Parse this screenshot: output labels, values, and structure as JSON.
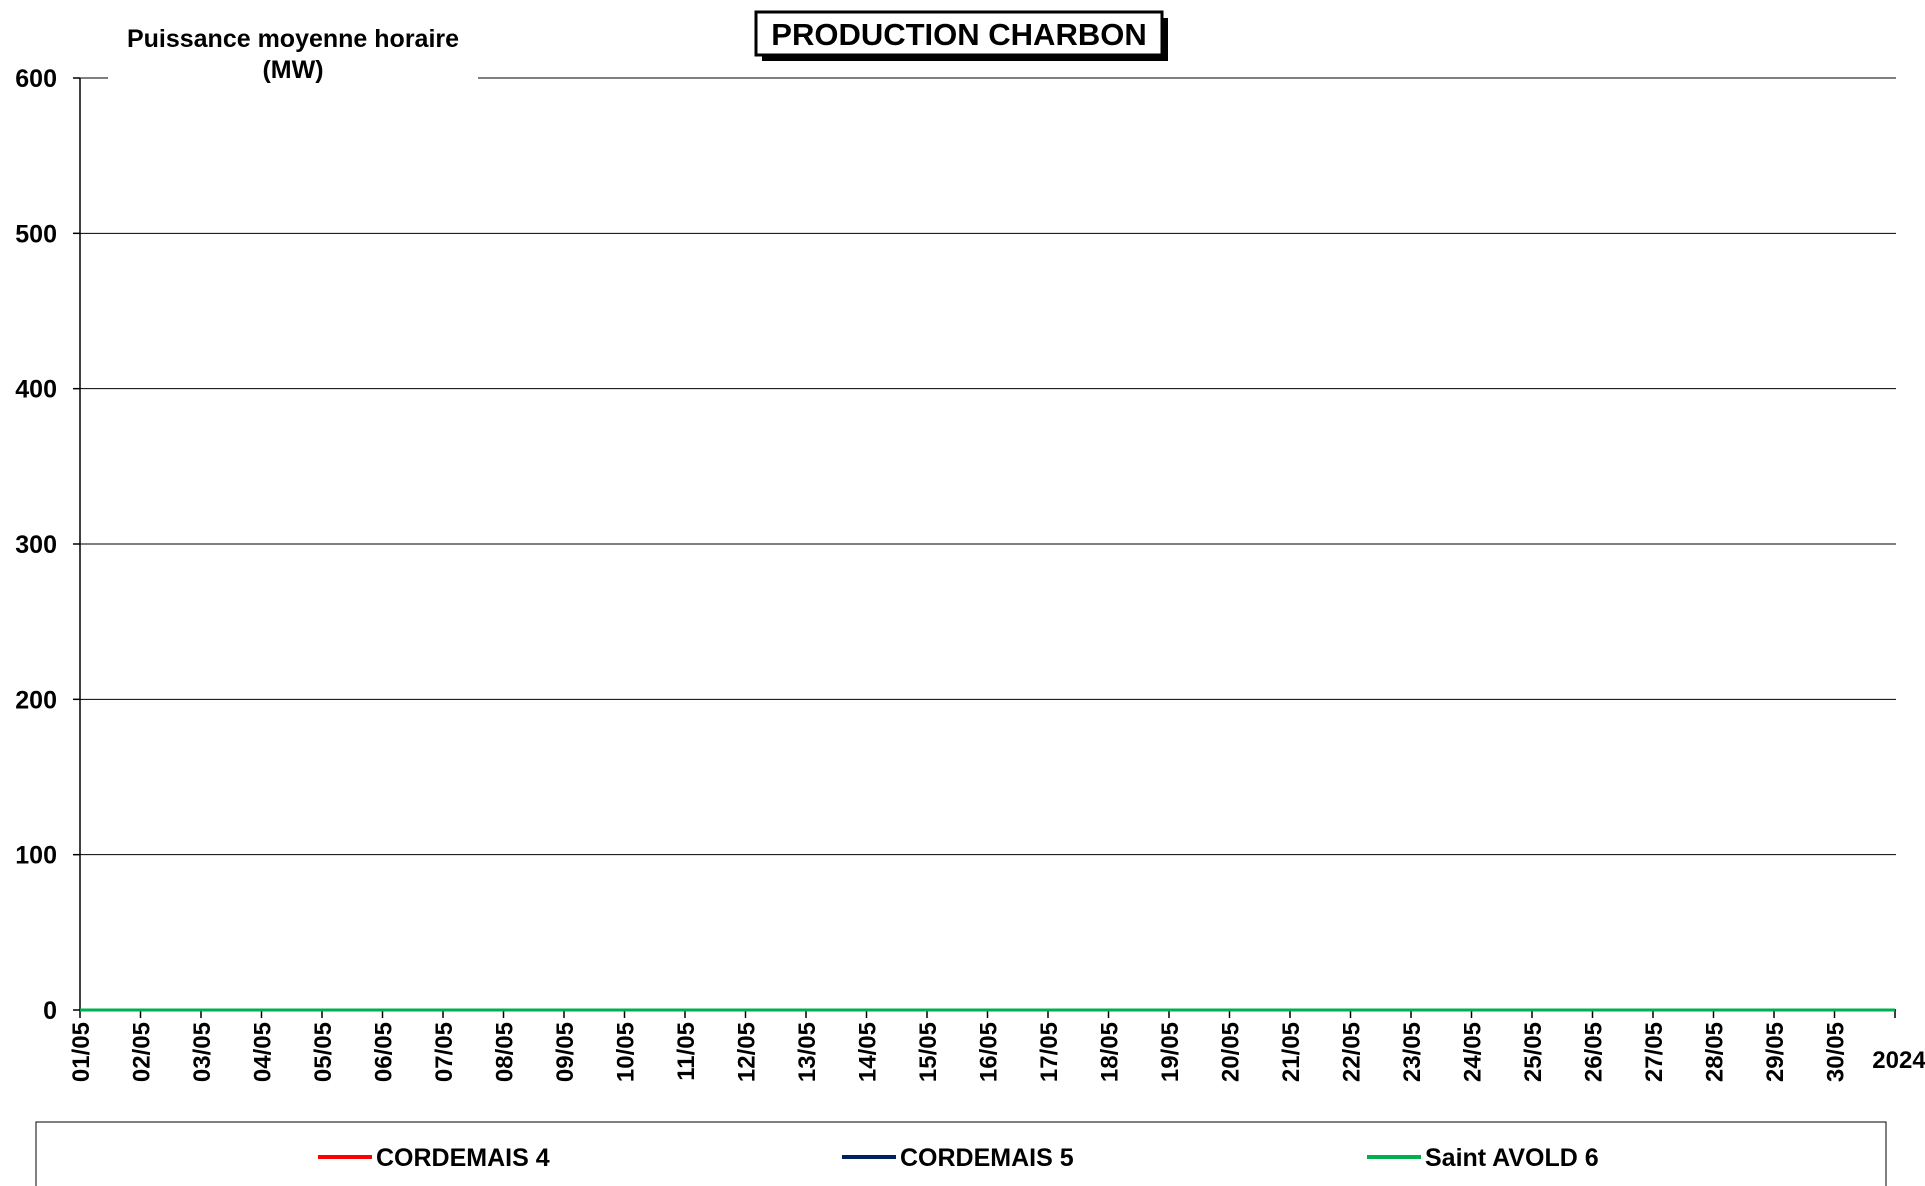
{
  "chart_data": {
    "type": "line",
    "title": "PRODUCTION CHARBON",
    "ylabel": "Puissance moyenne horaire (MW)",
    "ylabel_lines": [
      "Puissance moyenne horaire",
      "(MW)"
    ],
    "xlabel": "",
    "ylim": [
      0,
      600
    ],
    "yticks": [
      0,
      100,
      200,
      300,
      400,
      500,
      600
    ],
    "grid": true,
    "legend": "bottom",
    "categories": [
      "01/05",
      "02/05",
      "03/05",
      "04/05",
      "05/05",
      "06/05",
      "07/05",
      "08/05",
      "09/05",
      "10/05",
      "11/05",
      "12/05",
      "13/05",
      "14/05",
      "15/05",
      "16/05",
      "17/05",
      "18/05",
      "19/05",
      "20/05",
      "21/05",
      "22/05",
      "23/05",
      "24/05",
      "25/05",
      "26/05",
      "27/05",
      "28/05",
      "29/05",
      "30/05",
      "2024"
    ],
    "series": [
      {
        "name": "CORDEMAIS 4",
        "color": "#ff0000",
        "values": [
          0,
          0,
          0,
          0,
          0,
          0,
          0,
          0,
          0,
          0,
          0,
          0,
          0,
          0,
          0,
          0,
          0,
          0,
          0,
          0,
          0,
          0,
          0,
          0,
          0,
          0,
          0,
          0,
          0,
          0,
          0
        ]
      },
      {
        "name": "CORDEMAIS 5",
        "color": "#002060",
        "values": [
          0,
          0,
          0,
          0,
          0,
          0,
          0,
          0,
          0,
          0,
          0,
          0,
          0,
          0,
          0,
          0,
          0,
          0,
          0,
          0,
          0,
          0,
          0,
          0,
          0,
          0,
          0,
          0,
          0,
          0,
          0
        ]
      },
      {
        "name": "Saint AVOLD 6",
        "color": "#00b050",
        "values": [
          0,
          0,
          0,
          0,
          0,
          0,
          0,
          0,
          0,
          0,
          0,
          0,
          0,
          0,
          0,
          0,
          0,
          0,
          0,
          0,
          0,
          0,
          0,
          0,
          0,
          0,
          0,
          0,
          0,
          0,
          0
        ]
      }
    ]
  }
}
